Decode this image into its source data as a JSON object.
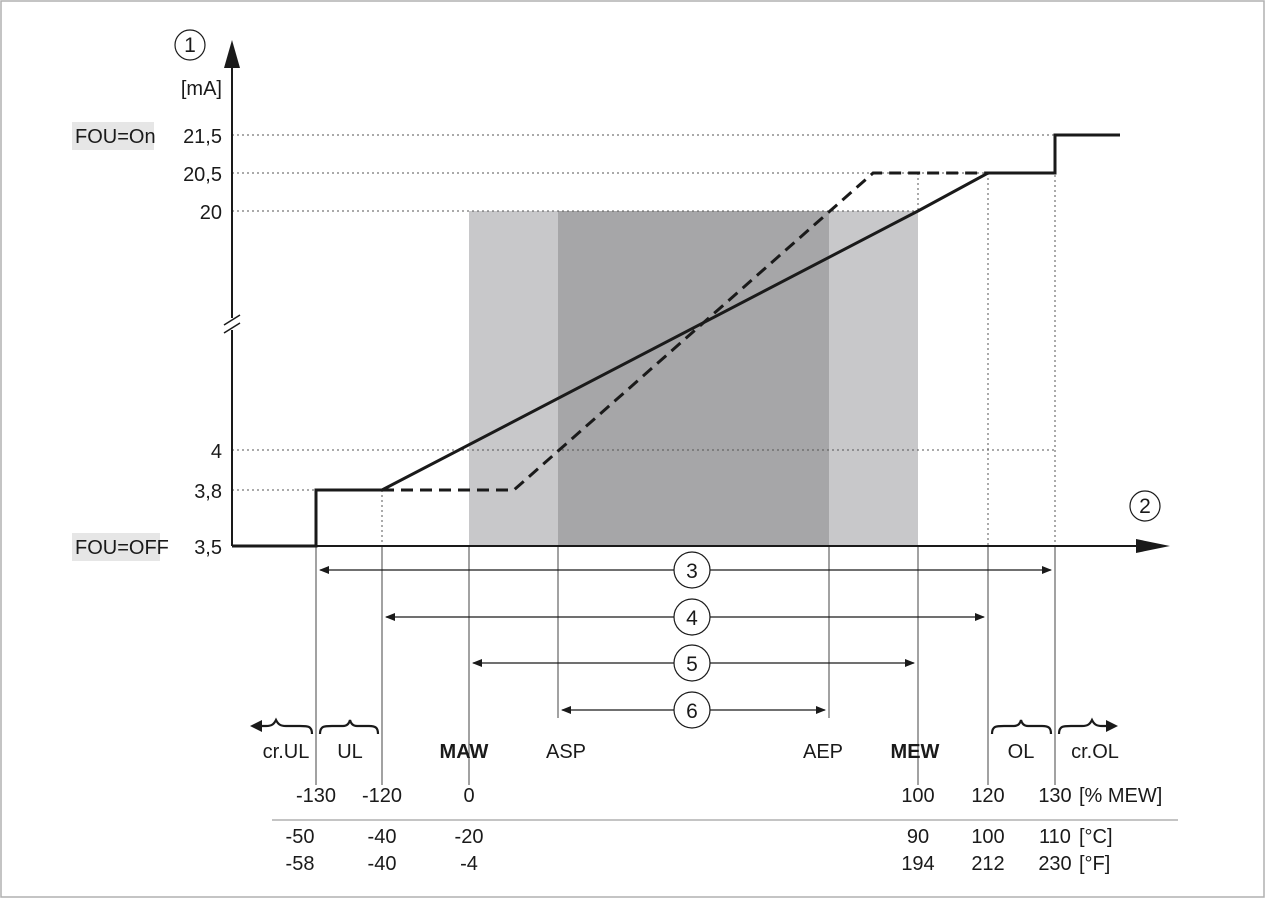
{
  "markers": {
    "y_axis": "1",
    "x_axis": "2",
    "range_3": "3",
    "range_4": "4",
    "range_5": "5",
    "range_6": "6"
  },
  "y_axis": {
    "unit": "[mA]",
    "ticks": [
      {
        "value": 21.5,
        "label": "FOU=On 21,5",
        "prefix": "FOU=On",
        "num": "21,5"
      },
      {
        "value": 20.5,
        "label": "20,5"
      },
      {
        "value": 20,
        "label": "20"
      },
      {
        "value": 4,
        "label": "4"
      },
      {
        "value": 3.8,
        "label": "3,8"
      },
      {
        "value": 3.5,
        "label": "FOU=OFF 3,5",
        "prefix": "FOU=OFF",
        "num": "3,5"
      }
    ]
  },
  "x_labels": {
    "cr_ul": "cr.UL",
    "ul": "UL",
    "maw": "MAW",
    "asp": "ASP",
    "aep": "AEP",
    "mew": "MEW",
    "ol": "OL",
    "cr_ol": "cr.OL"
  },
  "scales": {
    "percent": {
      "unit": "[% MEW]",
      "values": [
        "-130",
        "-120",
        "0",
        "100",
        "120",
        "130"
      ]
    },
    "celsius": {
      "unit": "[°C]",
      "values": [
        "-50",
        "-40",
        "-20",
        "90",
        "100",
        "110"
      ]
    },
    "fahrenheit": {
      "unit": "[°F]",
      "values": [
        "-58",
        "-40",
        "-4",
        "194",
        "212",
        "230"
      ]
    }
  },
  "colors": {
    "light_band": "#c8c8ca",
    "dark_band": "#a6a6a8",
    "line": "#1a1a1a",
    "label_highlight": "#e6e6e6"
  },
  "chart_data": {
    "type": "line",
    "x_unit": "% MEW",
    "y_unit": "mA",
    "series": [
      {
        "style": "solid",
        "x": [
          -140,
          -130,
          -130,
          -120,
          100,
          120,
          130,
          130,
          150
        ],
        "y": [
          3.5,
          3.5,
          3.8,
          3.8,
          20,
          20.5,
          20.5,
          21.5,
          21.5
        ]
      },
      {
        "style": "dashed",
        "x": [
          -120,
          10,
          90,
          120
        ],
        "y": [
          3.8,
          3.8,
          20.5,
          20.5
        ]
      }
    ],
    "bands": [
      {
        "from": 0,
        "to": 100,
        "shade": "light"
      },
      {
        "from": 20,
        "to": 80,
        "shade": "dark"
      }
    ]
  }
}
